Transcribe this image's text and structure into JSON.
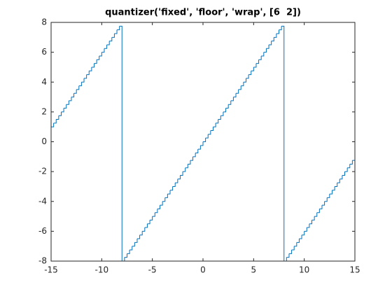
{
  "chart_data": {
    "type": "stairs",
    "title": "quantizer('fixed', 'floor', 'wrap', [6  2])",
    "color": "#0072bd",
    "grid": false,
    "xlim": [
      -15,
      15
    ],
    "ylim": [
      -8,
      8
    ],
    "xticks": [
      -15,
      -10,
      -5,
      0,
      5,
      10,
      15
    ],
    "yticks": [
      -8,
      -6,
      -4,
      -2,
      0,
      2,
      4,
      6,
      8
    ],
    "x": [
      -15,
      -14.75,
      -14.5,
      -14.25,
      -14,
      -13.75,
      -13.5,
      -13.25,
      -13,
      -12.75,
      -12.5,
      -12.25,
      -12,
      -11.75,
      -11.5,
      -11.25,
      -11,
      -10.75,
      -10.5,
      -10.25,
      -10,
      -9.75,
      -9.5,
      -9.25,
      -9,
      -8.75,
      -8.5,
      -8.25,
      -8,
      -7.75,
      -7.5,
      -7.25,
      -7,
      -6.75,
      -6.5,
      -6.25,
      -6,
      -5.75,
      -5.5,
      -5.25,
      -5,
      -4.75,
      -4.5,
      -4.25,
      -4,
      -3.75,
      -3.5,
      -3.25,
      -3,
      -2.75,
      -2.5,
      -2.25,
      -2,
      -1.75,
      -1.5,
      -1.25,
      -1,
      -0.75,
      -0.5,
      -0.25,
      0,
      0.25,
      0.5,
      0.75,
      1,
      1.25,
      1.5,
      1.75,
      2,
      2.25,
      2.5,
      2.75,
      3,
      3.25,
      3.5,
      3.75,
      4,
      4.25,
      4.5,
      4.75,
      5,
      5.25,
      5.5,
      5.75,
      6,
      6.25,
      6.5,
      6.75,
      7,
      7.25,
      7.5,
      7.75,
      8,
      8.25,
      8.5,
      8.75,
      9,
      9.25,
      9.5,
      9.75,
      10,
      10.25,
      10.5,
      10.75,
      11,
      11.25,
      11.5,
      11.75,
      12,
      12.25,
      12.5,
      12.75,
      13,
      13.25,
      13.5,
      13.75,
      14,
      14.25,
      14.5,
      14.75,
      15
    ],
    "values": [
      1,
      1.25,
      1.5,
      1.75,
      2,
      2.25,
      2.5,
      2.75,
      3,
      3.25,
      3.5,
      3.75,
      4,
      4.25,
      4.5,
      4.75,
      5,
      5.25,
      5.5,
      5.75,
      6,
      6.25,
      6.5,
      6.75,
      7,
      7.25,
      7.5,
      7.75,
      -8,
      -7.75,
      -7.5,
      -7.25,
      -7,
      -6.75,
      -6.5,
      -6.25,
      -6,
      -5.75,
      -5.5,
      -5.25,
      -5,
      -4.75,
      -4.5,
      -4.25,
      -4,
      -3.75,
      -3.5,
      -3.25,
      -3,
      -2.75,
      -2.5,
      -2.25,
      -2,
      -1.75,
      -1.5,
      -1.25,
      -1,
      -0.75,
      -0.5,
      -0.25,
      0,
      0.25,
      0.5,
      0.75,
      1,
      1.25,
      1.5,
      1.75,
      2,
      2.25,
      2.5,
      2.75,
      3,
      3.25,
      3.5,
      3.75,
      4,
      4.25,
      4.5,
      4.75,
      5,
      5.25,
      5.5,
      5.75,
      6,
      6.25,
      6.5,
      6.75,
      7,
      7.25,
      7.5,
      7.75,
      -8,
      -7.75,
      -7.5,
      -7.25,
      -7,
      -6.75,
      -6.5,
      -6.25,
      -6,
      -5.75,
      -5.5,
      -5.25,
      -5,
      -4.75,
      -4.5,
      -4.25,
      -4,
      -3.75,
      -3.5,
      -3.25,
      -3,
      -2.75,
      -2.5,
      -2.25,
      -2,
      -1.75,
      -1.5,
      -1.25,
      -1
    ]
  }
}
